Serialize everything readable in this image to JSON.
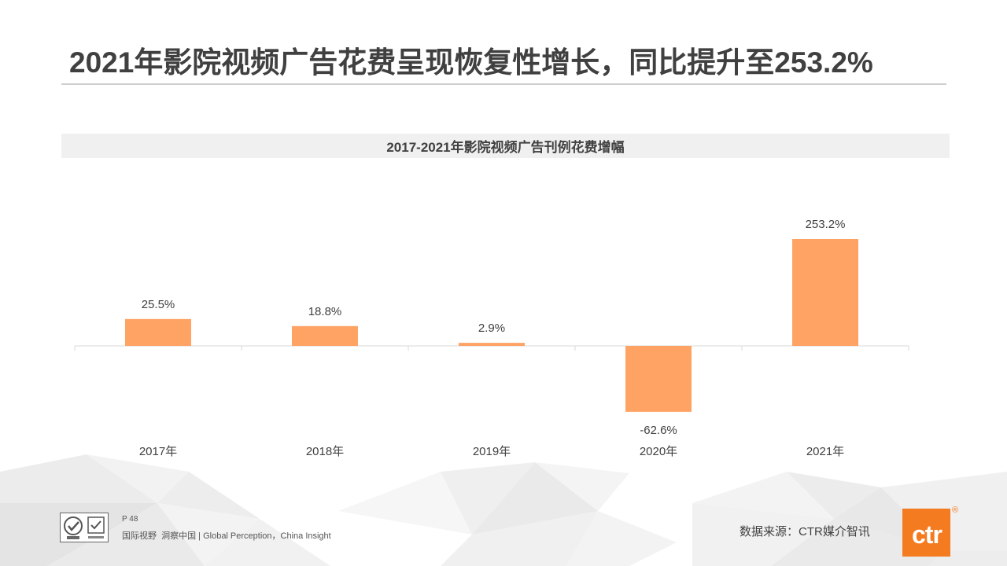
{
  "slide": {
    "title": "2021年影院视频广告花费呈现恢复性增长，同比提升至253.2%",
    "page_number": "P 48",
    "tagline": "国际视野  洞察中国 | Global Perception，China Insight",
    "source": "数据来源：CTR媒介智讯"
  },
  "brand": {
    "logo_text": "ctr",
    "registered_mark": "®",
    "logo_icon": "ctr-logo-icon",
    "certification_icon": "certification-badge-icon"
  },
  "colors": {
    "title": "#404040",
    "bar": "#FFA365",
    "axis": "#D9D9D9",
    "title_band": "#F0F0F0",
    "logo": "#F47B20"
  },
  "chart_data": {
    "type": "bar",
    "title": "2017-2021年影院视频广告刊例花费增幅",
    "categories": [
      "2017年",
      "2018年",
      "2019年",
      "2020年",
      "2021年"
    ],
    "values": [
      25.5,
      18.8,
      2.9,
      -62.6,
      253.2
    ],
    "value_labels": [
      "25.5%",
      "18.8%",
      "2.9%",
      "-62.6%",
      "253.2%"
    ],
    "xlabel": "",
    "ylabel": "",
    "grid": false
  }
}
